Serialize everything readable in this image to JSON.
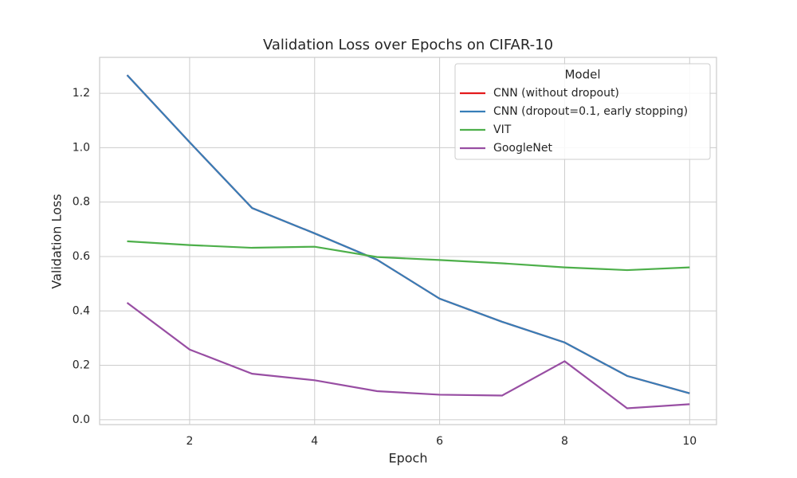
{
  "chart_data": {
    "type": "line",
    "title": "Validation Loss over Epochs on CIFAR-10",
    "x_label": "Epoch",
    "y_label": "Validation Loss",
    "legend_title": "Model",
    "legend": "upper right",
    "grid": true,
    "x": [
      1,
      2,
      3,
      4,
      5,
      6,
      7,
      8,
      9,
      10
    ],
    "series": [
      {
        "name": "CNN (without dropout)",
        "color": "#e41a1c",
        "values": [
          1.267,
          1.02,
          0.778,
          0.685,
          0.588,
          0.445,
          0.36,
          0.284,
          0.161,
          0.097
        ]
      },
      {
        "name": "CNN (dropout=0.1, early stopping)",
        "color": "#377eb8",
        "values": [
          1.267,
          1.02,
          0.778,
          0.685,
          0.588,
          0.445,
          0.36,
          0.284,
          0.161,
          0.097
        ]
      },
      {
        "name": "VIT",
        "color": "#4daf4a",
        "values": [
          0.656,
          0.642,
          0.632,
          0.636,
          0.598,
          0.587,
          0.575,
          0.56,
          0.55,
          0.56
        ]
      },
      {
        "name": "GoogleNet",
        "color": "#984ea3",
        "values": [
          0.43,
          0.258,
          0.169,
          0.145,
          0.105,
          0.092,
          0.089,
          0.215,
          0.042,
          0.057
        ]
      }
    ],
    "xlim": [
      0.56,
      10.43
    ],
    "xticks": [
      2,
      4,
      6,
      8,
      10
    ],
    "ylim": [
      -0.018,
      1.332
    ],
    "yticks": [
      {
        "value": 0,
        "label": "0.0"
      },
      0.2,
      0.4,
      0.6,
      0.8,
      {
        "value": 1,
        "label": "1.0"
      },
      1.2
    ]
  }
}
